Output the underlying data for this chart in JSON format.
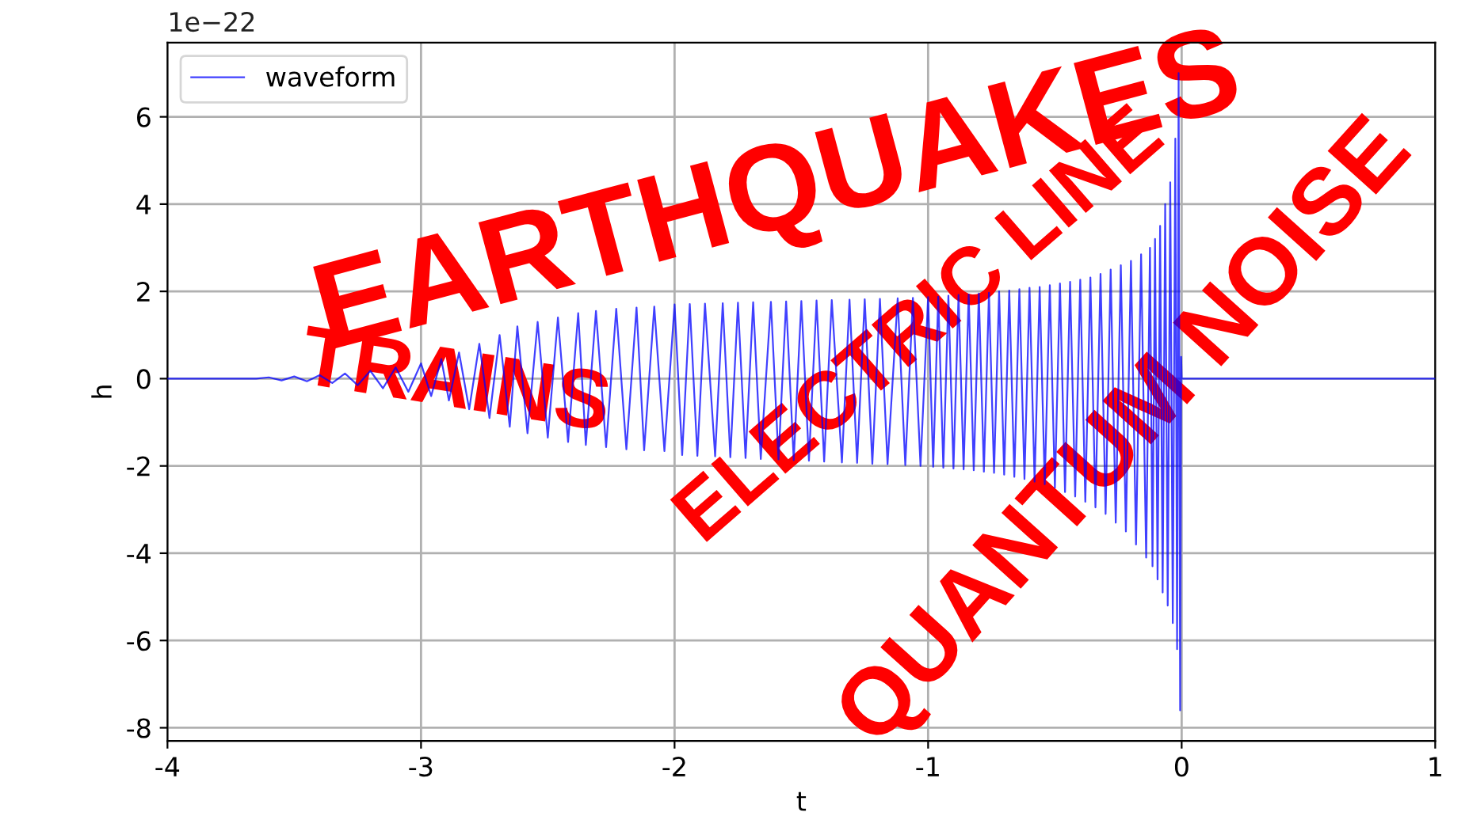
{
  "chart_data": {
    "type": "line",
    "xlabel": "t",
    "ylabel": "h",
    "xlim": [
      -4,
      1
    ],
    "xticks": [
      -4,
      -3,
      -2,
      -1,
      0,
      1
    ],
    "ylim": [
      -8.3,
      7.7
    ],
    "yticks": [
      -8,
      -6,
      -4,
      -2,
      0,
      2,
      4,
      6
    ],
    "grid": true,
    "legend": "top left",
    "line_style": "solid",
    "marker": "none",
    "annotations": [
      "1e−22",
      "EARTHQUAKES",
      "TRAINS",
      "ELECTRIC LINE",
      "QUANTUM NOISE"
    ],
    "series": [
      {
        "name": "waveform",
        "color": "#0000ff",
        "x": [
          -4.0,
          -3.65,
          -3.6,
          -3.55,
          -3.5,
          -3.45,
          -3.4,
          -3.35,
          -3.3,
          -3.25,
          -3.2,
          -3.15,
          -3.1,
          -3.05,
          -3.0,
          -2.96,
          -2.92,
          -2.89,
          -2.85,
          -2.81,
          -2.77,
          -2.73,
          -2.69,
          -2.65,
          -2.62,
          -2.58,
          -2.54,
          -2.5,
          -2.46,
          -2.42,
          -2.38,
          -2.35,
          -2.31,
          -2.27,
          -2.23,
          -2.19,
          -2.15,
          -2.12,
          -2.08,
          -2.04,
          -2.0,
          -1.97,
          -1.94,
          -1.91,
          -1.88,
          -1.84,
          -1.81,
          -1.78,
          -1.75,
          -1.72,
          -1.69,
          -1.66,
          -1.62,
          -1.59,
          -1.56,
          -1.53,
          -1.5,
          -1.47,
          -1.44,
          -1.41,
          -1.38,
          -1.34,
          -1.31,
          -1.28,
          -1.25,
          -1.22,
          -1.19,
          -1.16,
          -1.12,
          -1.09,
          -1.06,
          -1.03,
          -1.0,
          -0.98,
          -0.96,
          -0.94,
          -0.92,
          -0.9,
          -0.88,
          -0.86,
          -0.84,
          -0.82,
          -0.8,
          -0.78,
          -0.76,
          -0.74,
          -0.72,
          -0.7,
          -0.68,
          -0.66,
          -0.64,
          -0.62,
          -0.6,
          -0.58,
          -0.56,
          -0.54,
          -0.52,
          -0.5,
          -0.48,
          -0.46,
          -0.44,
          -0.42,
          -0.4,
          -0.38,
          -0.36,
          -0.34,
          -0.32,
          -0.3,
          -0.28,
          -0.26,
          -0.24,
          -0.22,
          -0.2,
          -0.18,
          -0.16,
          -0.14,
          -0.125,
          -0.115,
          -0.105,
          -0.095,
          -0.085,
          -0.075,
          -0.065,
          -0.055,
          -0.045,
          -0.035,
          -0.025,
          -0.018,
          -0.012,
          -0.006,
          -0.002,
          0.0,
          1.0
        ],
        "values": [
          0,
          0,
          0.03,
          -0.04,
          0.05,
          -0.06,
          0.08,
          -0.1,
          0.12,
          -0.15,
          0.18,
          -0.22,
          0.26,
          -0.3,
          0.35,
          -0.4,
          0.45,
          -0.5,
          0.6,
          -0.7,
          0.8,
          -0.9,
          1.0,
          -1.1,
          1.2,
          -1.25,
          1.3,
          -1.35,
          1.4,
          -1.45,
          1.5,
          -1.52,
          1.55,
          -1.57,
          1.6,
          -1.62,
          1.63,
          -1.64,
          1.65,
          -1.66,
          1.7,
          -1.75,
          1.71,
          -1.77,
          1.72,
          -1.78,
          1.73,
          -1.8,
          1.74,
          -1.82,
          1.75,
          -1.84,
          1.76,
          -1.85,
          1.77,
          -1.87,
          1.78,
          -1.88,
          1.79,
          -1.9,
          1.8,
          -1.92,
          1.81,
          -1.93,
          1.82,
          -1.95,
          1.83,
          -1.96,
          1.84,
          -1.98,
          1.85,
          -2.0,
          1.87,
          -2.02,
          1.88,
          -2.04,
          1.9,
          -2.06,
          1.92,
          -2.08,
          1.93,
          -2.1,
          1.95,
          -2.13,
          1.97,
          -2.16,
          2.0,
          -2.2,
          2.02,
          -2.25,
          2.05,
          -2.3,
          2.08,
          -2.36,
          2.1,
          -2.42,
          2.14,
          -2.5,
          2.18,
          -2.6,
          2.22,
          -2.7,
          2.27,
          -2.82,
          2.32,
          -2.95,
          2.4,
          -3.1,
          2.5,
          -3.3,
          2.6,
          -3.5,
          2.7,
          -3.8,
          2.85,
          -4.1,
          3.0,
          -4.3,
          3.2,
          -4.6,
          3.5,
          -4.9,
          4.0,
          -5.2,
          4.5,
          -5.6,
          5.5,
          -6.2,
          7.0,
          -7.6,
          0.5,
          0,
          0
        ]
      }
    ]
  }
}
